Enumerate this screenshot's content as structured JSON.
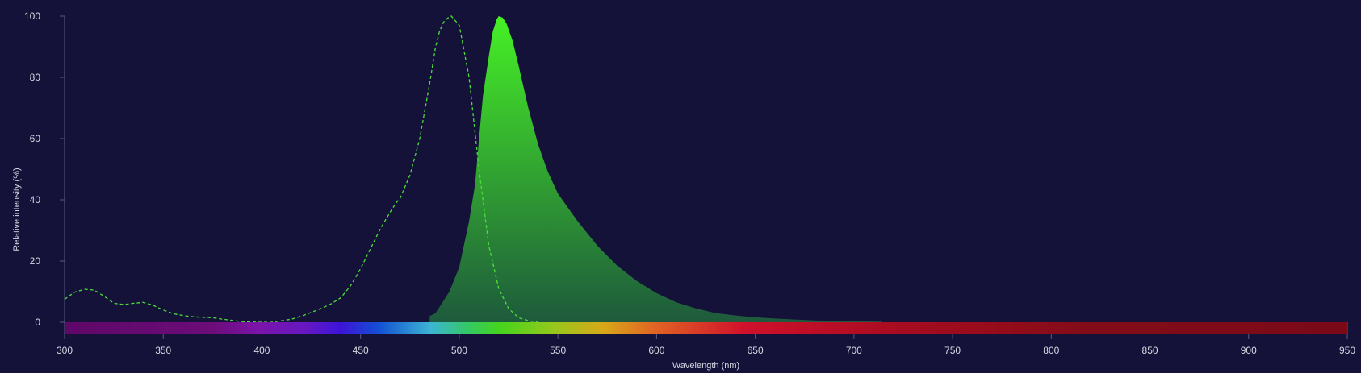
{
  "chart_data": {
    "type": "area",
    "xlabel": "Wavelength (nm)",
    "ylabel": "Relative intensity (%)",
    "xlim": [
      300,
      950
    ],
    "ylim": [
      0,
      100
    ],
    "x_ticks": [
      300,
      350,
      400,
      450,
      500,
      550,
      600,
      650,
      700,
      750,
      800,
      850,
      900,
      950
    ],
    "y_ticks": [
      0,
      20,
      40,
      60,
      80,
      100
    ],
    "grid": false,
    "colors": {
      "background": "#141238",
      "axis": "#5a5a88",
      "excitation_line": "#4cdc3c",
      "emission_top": "#46f026",
      "emission_bottom": "#1e5a3c"
    },
    "series": [
      {
        "style": "dashed-line",
        "x": [
          300,
          305,
          310,
          315,
          320,
          325,
          330,
          335,
          340,
          345,
          350,
          355,
          360,
          365,
          370,
          375,
          380,
          385,
          390,
          400,
          405,
          410,
          415,
          420,
          425,
          430,
          435,
          440,
          445,
          450,
          455,
          460,
          465,
          468,
          470,
          475,
          480,
          485,
          488,
          490,
          492,
          494,
          496,
          500,
          505,
          510,
          515,
          520,
          525,
          530,
          535,
          540
        ],
        "y": [
          7.5,
          9.8,
          10.8,
          10.5,
          8.5,
          6.2,
          5.8,
          6.2,
          6.5,
          5.5,
          4.0,
          2.8,
          2.2,
          1.8,
          1.6,
          1.5,
          1.0,
          0.6,
          0.2,
          0.0,
          0.0,
          0.5,
          1.0,
          2.0,
          3.2,
          4.5,
          6.0,
          8.0,
          12.0,
          17.5,
          24.0,
          30.5,
          36.0,
          39.0,
          40.5,
          48.0,
          60.0,
          78.0,
          90.0,
          95.0,
          98.0,
          99.3,
          100.0,
          97.0,
          80.0,
          50.0,
          25.0,
          11.0,
          4.5,
          1.5,
          0.5,
          0.0
        ]
      },
      {
        "style": "filled-area",
        "x": [
          485,
          488,
          490,
          495,
          500,
          505,
          508,
          510,
          512,
          515,
          517,
          519,
          520,
          522,
          524,
          527,
          530,
          535,
          540,
          545,
          550,
          560,
          570,
          580,
          590,
          600,
          610,
          620,
          630,
          640,
          650,
          660,
          670,
          680,
          690,
          700,
          714
        ],
        "y": [
          2,
          3,
          5,
          10,
          18,
          33,
          45,
          60,
          74,
          87,
          95,
          99,
          100,
          99.5,
          97.5,
          92,
          84,
          70,
          58,
          49,
          42,
          33,
          25,
          18.5,
          13.5,
          9.5,
          6.5,
          4.5,
          3.0,
          2.2,
          1.6,
          1.2,
          0.9,
          0.6,
          0.4,
          0.3,
          0.2
        ]
      }
    ]
  }
}
